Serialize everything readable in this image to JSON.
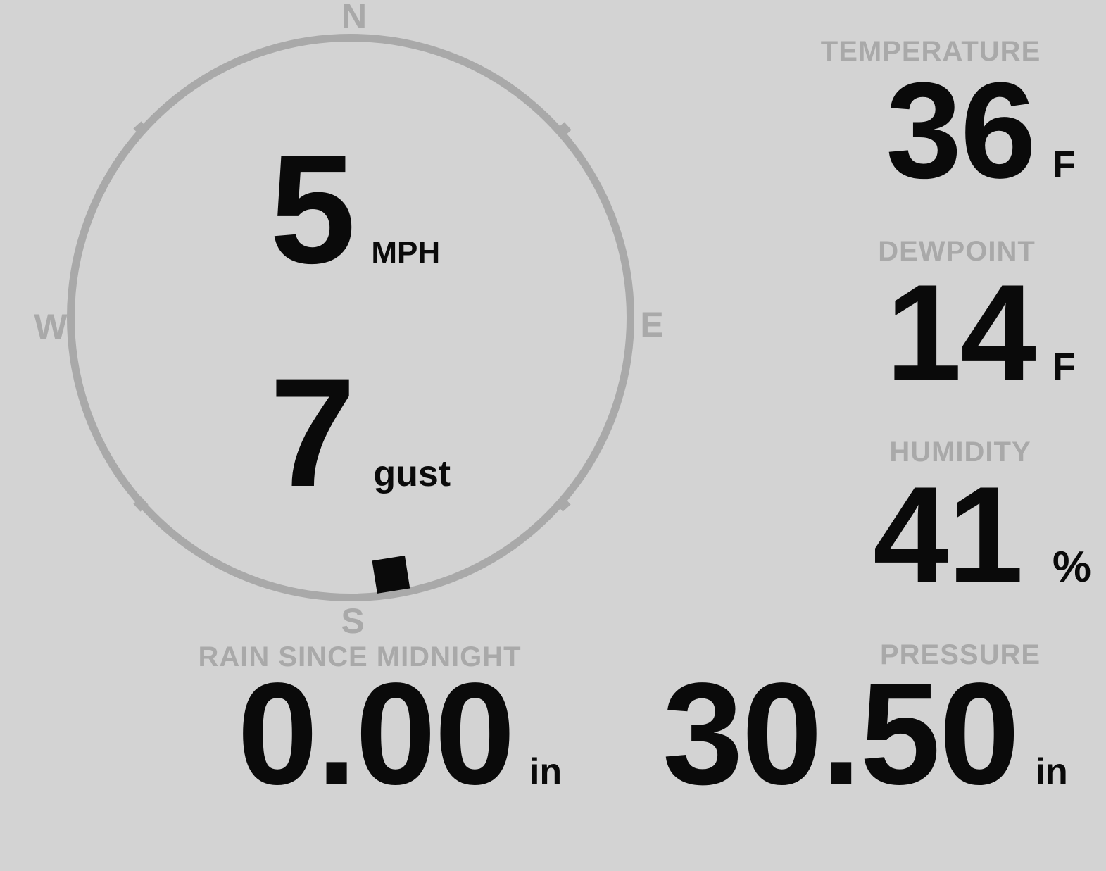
{
  "display": {
    "background_color": "#d3d3d3",
    "muted_color": "#a9a9a9",
    "value_color": "#0a0a0a"
  },
  "compass": {
    "cardinals": {
      "north": "N",
      "east": "E",
      "south": "S",
      "west": "W"
    },
    "wind_speed": {
      "value": "5",
      "unit": "MPH"
    },
    "wind_gust": {
      "value": "7",
      "unit": "gust"
    },
    "wind_direction_deg": 171
  },
  "metrics": {
    "temperature": {
      "label": "TEMPERATURE",
      "value": "36",
      "unit": "F"
    },
    "dewpoint": {
      "label": "DEWPOINT",
      "value": "14",
      "unit": "F"
    },
    "humidity": {
      "label": "HUMIDITY",
      "value": "41",
      "unit": "%"
    },
    "rain_since_midnight": {
      "label": "RAIN SINCE MIDNIGHT",
      "value": "0.00",
      "unit": "in"
    },
    "pressure": {
      "label": "PRESSURE",
      "value": "30.50",
      "unit": "in"
    }
  }
}
